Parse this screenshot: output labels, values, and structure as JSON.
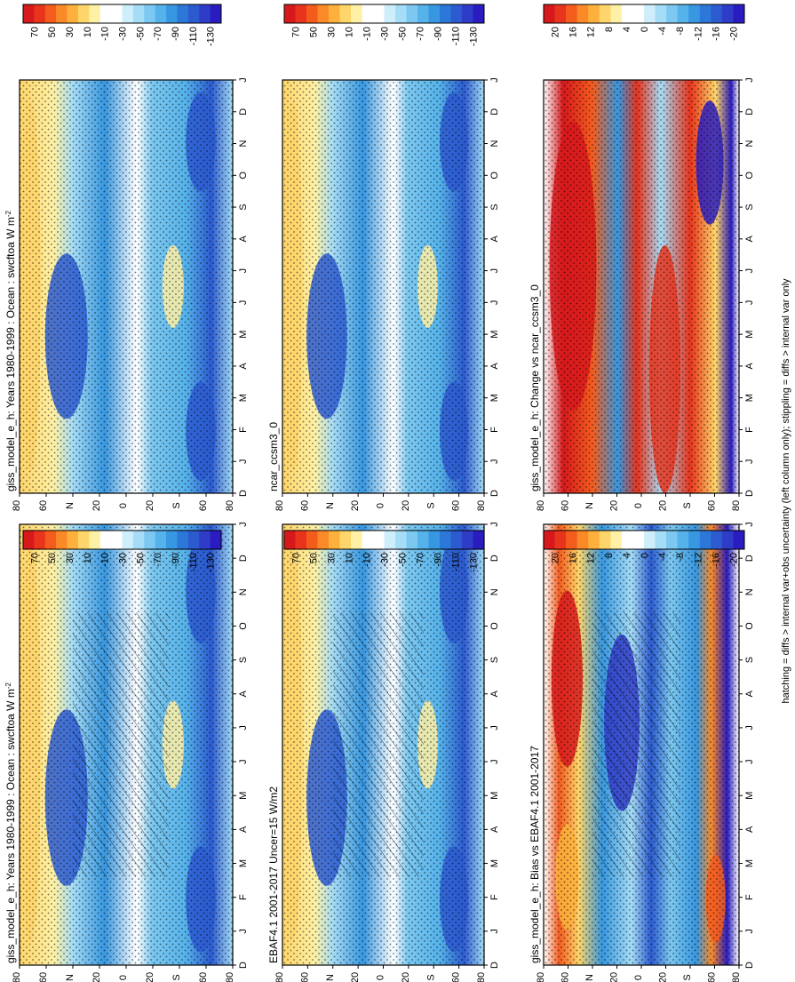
{
  "figure": {
    "footer_note": "hatching = diffs > internal var+obs uncertainty (left column only); stippling = diffs > internal var only"
  },
  "chart_data": [
    {
      "type": "heatmap",
      "id": "model_left",
      "title": "giss_model_e_h: Years 1980-1999 : Ocean : swcftoa W m",
      "title_sup": "-2",
      "x_ticks": [
        "D",
        "J",
        "F",
        "M",
        "A",
        "M",
        "J",
        "J",
        "A",
        "S",
        "O",
        "N",
        "D",
        "J"
      ],
      "y_ticks": [
        "80",
        "60",
        "N",
        "20",
        "0",
        "20",
        "S",
        "60",
        "80"
      ],
      "ylim": [
        -90,
        90
      ],
      "colorbar_labels": [
        "70",
        "50",
        "30",
        "10",
        "-10",
        "-30",
        "-50",
        "-70",
        "-90",
        "-110",
        "-130"
      ],
      "colorbar_colors": [
        "#d7191c",
        "#e8341c",
        "#f45c1e",
        "#fa8a28",
        "#fdb13c",
        "#fed56a",
        "#fef0a4",
        "#ffffff",
        "#ffffff",
        "#cfeefc",
        "#a5dcf6",
        "#7cc8f0",
        "#55b2ea",
        "#3797e0",
        "#2c78d8",
        "#2c5bd0",
        "#2f3cc8",
        "#2a1cc0"
      ],
      "hatching": true,
      "stippling": true
    },
    {
      "type": "heatmap",
      "id": "obs_left",
      "title": "EBAF4.1 2001-2017 Uncer=15 W/m2",
      "x_ticks": [
        "D",
        "J",
        "F",
        "M",
        "A",
        "M",
        "J",
        "J",
        "A",
        "S",
        "O",
        "N",
        "D",
        "J"
      ],
      "y_ticks": [
        "80",
        "60",
        "N",
        "20",
        "0",
        "20",
        "S",
        "60",
        "80"
      ],
      "ylim": [
        -90,
        90
      ],
      "colorbar_labels": [
        "70",
        "50",
        "30",
        "10",
        "-10",
        "-30",
        "-50",
        "-70",
        "-90",
        "-110",
        "-130"
      ],
      "hatching": true,
      "stippling": true
    },
    {
      "type": "heatmap",
      "id": "bias",
      "title": "giss_model_e_h: Bias vs EBAF4.1 2001-2017",
      "x_ticks": [
        "D",
        "J",
        "F",
        "M",
        "A",
        "M",
        "J",
        "J",
        "A",
        "S",
        "O",
        "N",
        "D",
        "J"
      ],
      "y_ticks": [
        "80",
        "60",
        "N",
        "20",
        "0",
        "20",
        "S",
        "60",
        "80"
      ],
      "ylim": [
        -90,
        90
      ],
      "colorbar_labels": [
        "20",
        "16",
        "12",
        "8",
        "4",
        "0",
        "-4",
        "-8",
        "-12",
        "-16",
        "-20"
      ],
      "hatching": true,
      "stippling": true
    },
    {
      "type": "heatmap",
      "id": "model_right",
      "title": "giss_model_e_h: Years 1980-1999 : Ocean : swcftoa W m",
      "title_sup": "-2",
      "x_ticks": [
        "D",
        "J",
        "F",
        "M",
        "A",
        "M",
        "J",
        "J",
        "A",
        "S",
        "O",
        "N",
        "D",
        "J"
      ],
      "y_ticks": [
        "80",
        "60",
        "N",
        "20",
        "0",
        "20",
        "S",
        "60",
        "80"
      ],
      "ylim": [
        -90,
        90
      ],
      "colorbar_labels": [
        "70",
        "50",
        "30",
        "10",
        "-10",
        "-30",
        "-50",
        "-70",
        "-90",
        "-110",
        "-130"
      ],
      "stippling": true
    },
    {
      "type": "heatmap",
      "id": "ncar",
      "title": "ncar_ccsm3_0",
      "x_ticks": [
        "D",
        "J",
        "F",
        "M",
        "A",
        "M",
        "J",
        "J",
        "A",
        "S",
        "O",
        "N",
        "D",
        "J"
      ],
      "y_ticks": [
        "80",
        "60",
        "N",
        "20",
        "0",
        "20",
        "S",
        "60",
        "80"
      ],
      "ylim": [
        -90,
        90
      ],
      "colorbar_labels": [
        "70",
        "50",
        "30",
        "10",
        "-10",
        "-30",
        "-50",
        "-70",
        "-90",
        "-110",
        "-130"
      ],
      "stippling": true
    },
    {
      "type": "heatmap",
      "id": "change",
      "title": "giss_model_e_h: Change vs ncar_ccsm3_0",
      "x_ticks": [
        "D",
        "J",
        "F",
        "M",
        "A",
        "M",
        "J",
        "J",
        "A",
        "S",
        "O",
        "N",
        "D",
        "J"
      ],
      "y_ticks": [
        "80",
        "60",
        "N",
        "20",
        "0",
        "20",
        "S",
        "60",
        "80"
      ],
      "ylim": [
        -90,
        90
      ],
      "colorbar_labels": [
        "20",
        "16",
        "12",
        "8",
        "4",
        "0",
        "-4",
        "-8",
        "-12",
        "-16",
        "-20"
      ],
      "stippling": true
    }
  ]
}
